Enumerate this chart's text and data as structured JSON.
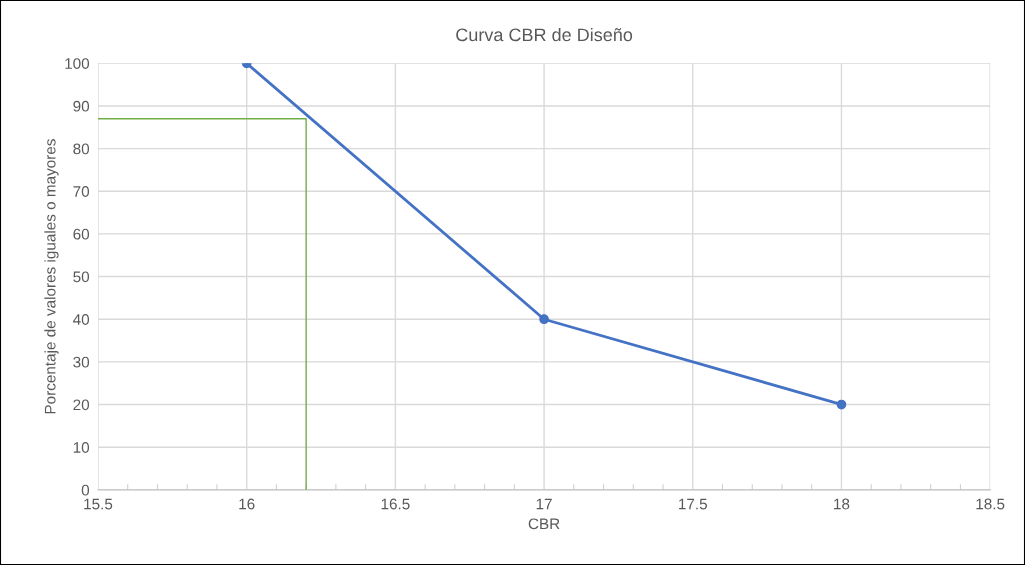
{
  "chart_data": {
    "type": "line",
    "title": "Curva CBR de Diseño",
    "xlabel": "CBR",
    "ylabel": "Porcentaje de valores iguales o mayores",
    "series": [
      {
        "color": "#4472c4",
        "x": [
          16,
          17,
          18
        ],
        "values": [
          100,
          40,
          20
        ],
        "marker": "circle"
      },
      {
        "color": "#70ad47",
        "x": [
          15.5,
          16.2,
          16.2
        ],
        "values": [
          87,
          87,
          0
        ],
        "marker": "none"
      }
    ],
    "xlim": [
      15.5,
      18.5
    ],
    "xticks": [
      15.5,
      16,
      16.5,
      17,
      17.5,
      18,
      18.5
    ],
    "ylim": [
      0,
      100
    ],
    "yticks": [
      0,
      10,
      20,
      30,
      40,
      50,
      60,
      70,
      80,
      90,
      100
    ],
    "grid": true,
    "legend": false
  }
}
